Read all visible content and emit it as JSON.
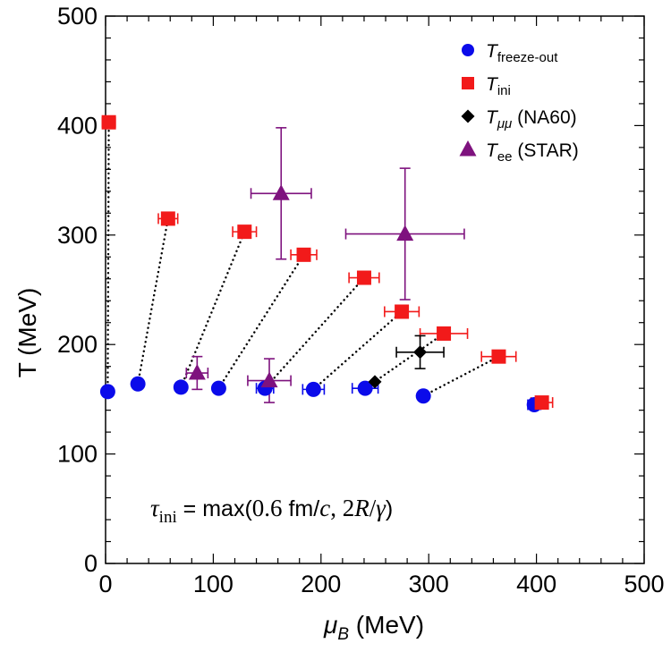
{
  "chart_data": {
    "type": "scatter",
    "xlabel_sym": "μ",
    "xlabel_sub": "B",
    "xlabel_unit": " (MeV)",
    "ylabel": "T (MeV)",
    "xlim": [
      0,
      500
    ],
    "ylim": [
      0,
      500
    ],
    "xticks": [
      0,
      100,
      200,
      300,
      400,
      500
    ],
    "yticks": [
      0,
      100,
      200,
      300,
      400,
      500
    ],
    "xtick_labels": [
      "0",
      "100",
      "200",
      "300",
      "400",
      "500"
    ],
    "ytick_labels": [
      "0",
      "100",
      "200",
      "300",
      "400",
      "500"
    ],
    "grid": false,
    "legend_position": "top-right",
    "series": [
      {
        "name": "T_freeze-out",
        "label_main": "T",
        "label_sub": "freeze-out",
        "label_rest": "",
        "marker": "circle",
        "color": "#0b0bea",
        "points": [
          {
            "x": 2,
            "y": 157,
            "xerr": 0
          },
          {
            "x": 30,
            "y": 164,
            "xerr": 0
          },
          {
            "x": 70,
            "y": 161,
            "xerr": 0
          },
          {
            "x": 105,
            "y": 160,
            "xerr": 0
          },
          {
            "x": 148,
            "y": 160,
            "xerr": 8
          },
          {
            "x": 193,
            "y": 159,
            "xerr": 10
          },
          {
            "x": 241,
            "y": 160,
            "xerr": 12
          },
          {
            "x": 295,
            "y": 153,
            "xerr": 0
          },
          {
            "x": 398,
            "y": 145,
            "xerr": 6
          }
        ]
      },
      {
        "name": "T_ini",
        "label_main": "T",
        "label_sub": "ini",
        "label_rest": "",
        "marker": "square",
        "color": "#f21a1a",
        "points": [
          {
            "x": 3,
            "y": 403,
            "xerr": 6
          },
          {
            "x": 58,
            "y": 315,
            "xerr": 9
          },
          {
            "x": 129,
            "y": 303,
            "xerr": 11
          },
          {
            "x": 184,
            "y": 282,
            "xerr": 12
          },
          {
            "x": 240,
            "y": 261,
            "xerr": 14
          },
          {
            "x": 275,
            "y": 230,
            "xerr": 16
          },
          {
            "x": 314,
            "y": 210,
            "xerr": 22
          },
          {
            "x": 365,
            "y": 189,
            "xerr": 16
          },
          {
            "x": 405,
            "y": 147,
            "xerr": 10
          }
        ]
      },
      {
        "name": "T_μμ (NA60)",
        "label_main": "T",
        "label_sub": "μμ",
        "label_rest": " (NA60)",
        "marker": "diamond",
        "color": "#000000",
        "points": [
          {
            "x": 250,
            "y": 166,
            "xerr": 0,
            "yerr": 0
          },
          {
            "x": 292,
            "y": 193,
            "xerr": 22,
            "yerr": 15
          }
        ]
      },
      {
        "name": "T_ee (STAR)",
        "label_main": "T",
        "label_sub": "ee",
        "label_rest": " (STAR)",
        "marker": "triangle",
        "color": "#7e127e",
        "points": [
          {
            "x": 85,
            "y": 174,
            "xerr": 10,
            "yerr": 15
          },
          {
            "x": 152,
            "y": 167,
            "xerr": 20,
            "yerr": 20
          },
          {
            "x": 163,
            "y": 338,
            "xerr": 28,
            "yerr": 60
          },
          {
            "x": 278,
            "y": 301,
            "xerr": 55,
            "yerr": 60
          }
        ]
      }
    ],
    "connections": [
      {
        "from": [
          2,
          157
        ],
        "to": [
          3,
          403
        ]
      },
      {
        "from": [
          30,
          164
        ],
        "to": [
          58,
          315
        ]
      },
      {
        "from": [
          70,
          161
        ],
        "to": [
          129,
          303
        ]
      },
      {
        "from": [
          105,
          160
        ],
        "to": [
          184,
          282
        ]
      },
      {
        "from": [
          148,
          160
        ],
        "to": [
          240,
          261
        ]
      },
      {
        "from": [
          193,
          159
        ],
        "to": [
          275,
          230
        ]
      },
      {
        "from": [
          241,
          160
        ],
        "to": [
          314,
          210
        ]
      },
      {
        "from": [
          295,
          153
        ],
        "to": [
          365,
          189
        ]
      }
    ],
    "annotation": {
      "tau": "τ",
      "tau_sub": "ini",
      "text": " = max(",
      "num": "0.6",
      "unit": " fm/",
      "c": "c",
      "sep": ", 2",
      "R": "R",
      "slash": "/",
      "gamma": "γ",
      "close": ")"
    }
  }
}
